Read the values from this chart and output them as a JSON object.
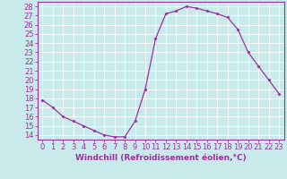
{
  "x": [
    0,
    1,
    2,
    3,
    4,
    5,
    6,
    7,
    8,
    9,
    10,
    11,
    12,
    13,
    14,
    15,
    16,
    17,
    18,
    19,
    20,
    21,
    22,
    23
  ],
  "y": [
    17.8,
    17.0,
    16.0,
    15.5,
    15.0,
    14.5,
    14.0,
    13.8,
    13.8,
    15.5,
    19.0,
    24.5,
    27.2,
    27.5,
    28.0,
    27.8,
    27.5,
    27.2,
    26.8,
    25.5,
    23.0,
    21.5,
    20.0,
    18.5
  ],
  "line_color": "#993399",
  "marker": "D",
  "marker_size": 2.0,
  "bg_color": "#c8eaea",
  "grid_color": "#b0d8d8",
  "xlabel": "Windchill (Refroidissement éolien,°C)",
  "ylabel_ticks": [
    14,
    15,
    16,
    17,
    18,
    19,
    20,
    21,
    22,
    23,
    24,
    25,
    26,
    27,
    28
  ],
  "xlim": [
    -0.5,
    23.5
  ],
  "ylim": [
    13.5,
    28.5
  ],
  "xticks": [
    0,
    1,
    2,
    3,
    4,
    5,
    6,
    7,
    8,
    9,
    10,
    11,
    12,
    13,
    14,
    15,
    16,
    17,
    18,
    19,
    20,
    21,
    22,
    23
  ],
  "label_fontsize": 6.5,
  "tick_fontsize": 6.0,
  "axis_color": "#993399",
  "linewidth": 0.9
}
